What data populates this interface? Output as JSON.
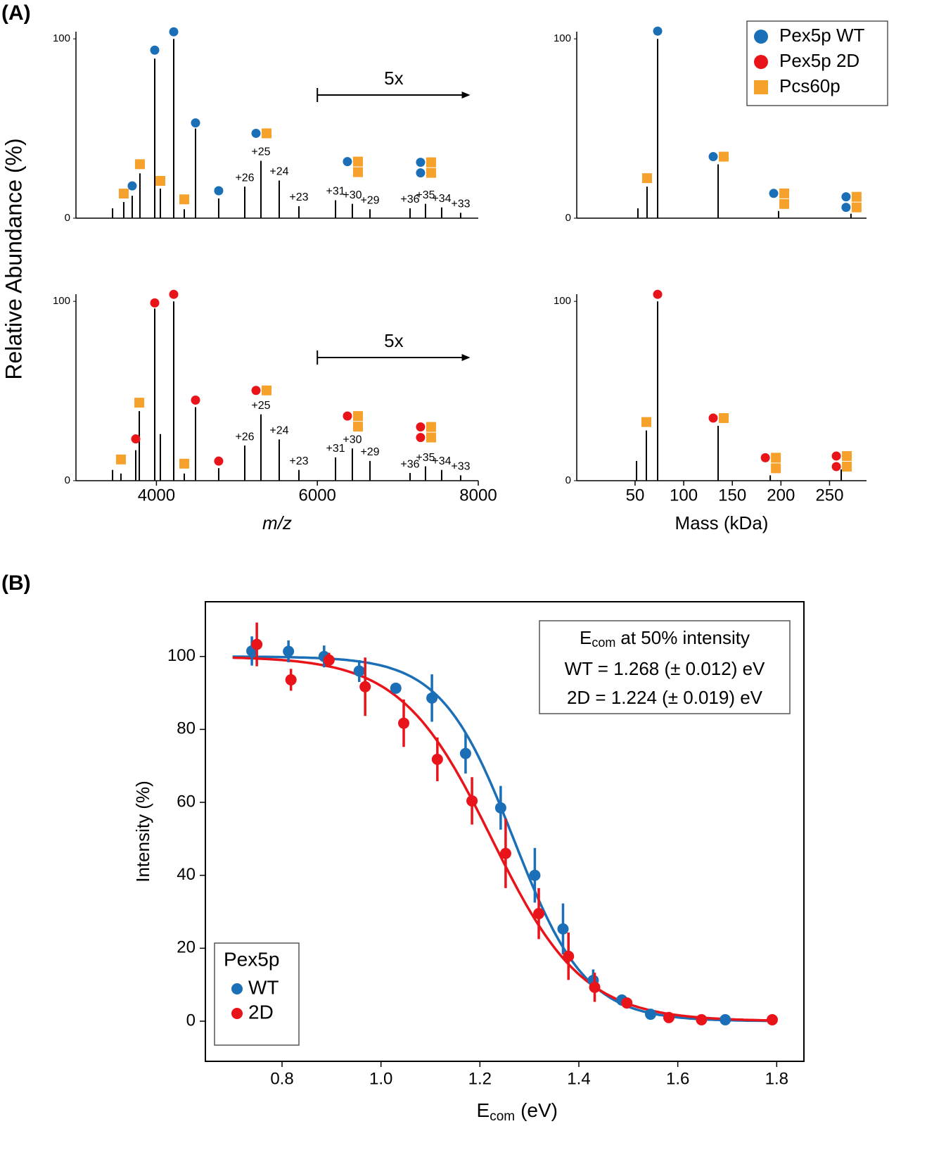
{
  "figure": {
    "panel_a": "(A)",
    "panel_b": "(B)",
    "ylabel_a": "Relative Abundance (%)"
  },
  "chart_data": [
    {
      "type": "spectrum",
      "color": "#000000",
      "x": [
        3455,
        3594,
        3699,
        3795,
        3979,
        4049,
        4215,
        4346,
        4486,
        4774,
        5098,
        5299,
        5526,
        5771,
        6226,
        6435,
        6654,
        7152,
        7344,
        7545,
        7781
      ],
      "values": [
        5.5,
        9,
        12.5,
        25,
        89,
        16.5,
        100,
        5,
        50,
        11,
        17.6,
        32,
        21,
        6.7,
        10,
        8,
        5,
        5.5,
        8,
        6,
        3
      ],
      "peak_labels": [
        null,
        null,
        null,
        null,
        null,
        null,
        null,
        null,
        null,
        null,
        "+26",
        "+25",
        "+24",
        "+23",
        "+31",
        "+30",
        "+29",
        "+36",
        "+35",
        "+34",
        "+33"
      ],
      "xlim": [
        3000,
        8000
      ],
      "ylim": [
        0,
        104
      ],
      "yticks": [
        0,
        100
      ],
      "scale_annotation": {
        "text": "5x",
        "from": 6000,
        "to": 7900
      }
    },
    {
      "type": "spectrum",
      "color": "#000000",
      "x": [
        52.9,
        62.3,
        73.2,
        135.4,
        197.6,
        272
      ],
      "values": [
        5.5,
        17.6,
        100,
        30,
        4,
        2.5
      ],
      "xlim": [
        -10,
        288
      ],
      "ylim": [
        0,
        104
      ],
      "yticks": [
        0,
        100
      ],
      "legend": [
        {
          "name": "Pex5p WT",
          "color": "#1b6fb6",
          "marker": "circle"
        },
        {
          "name": "Pex5p 2D",
          "color": "#e8141a",
          "marker": "circle"
        },
        {
          "name": "Pcs60p",
          "color": "#f5a12c",
          "marker": "square"
        }
      ]
    },
    {
      "type": "spectrum",
      "color": "#000000",
      "x": [
        3455,
        3559,
        3743,
        3787,
        3979,
        4049,
        4215,
        4346,
        4486,
        4774,
        5098,
        5299,
        5526,
        5771,
        6226,
        6435,
        6654,
        7152,
        7344,
        7545,
        7781
      ],
      "values": [
        6,
        4,
        17,
        38.8,
        96,
        26,
        100,
        4,
        41,
        7,
        19.6,
        37,
        23,
        6,
        13,
        18,
        11,
        4.3,
        8,
        6,
        3
      ],
      "peak_labels": [
        null,
        null,
        null,
        null,
        null,
        null,
        null,
        null,
        null,
        null,
        "+26",
        "+25",
        "+24",
        "+23",
        "+31",
        "+30",
        "+29",
        "+36",
        "+35",
        "+34",
        "+33"
      ],
      "xlim": [
        3000,
        8000
      ],
      "ylim": [
        0,
        104
      ],
      "yticks": [
        0,
        100
      ],
      "xticks": [
        4000,
        6000,
        8000
      ],
      "xlabel": "m/z",
      "xlabel_italic": true,
      "scale_annotation": {
        "text": "5x",
        "from": 6000,
        "to": 7900
      }
    },
    {
      "type": "spectrum",
      "color": "#000000",
      "x": [
        51.5,
        61.6,
        73.2,
        135.4,
        189,
        262
      ],
      "values": [
        11,
        28,
        100,
        30.6,
        3,
        6.3
      ],
      "xlim": [
        -10,
        288
      ],
      "ylim": [
        0,
        104
      ],
      "yticks": [
        0,
        100
      ],
      "xticks": [
        50,
        100,
        150,
        200,
        250
      ],
      "xlabel": "Mass (kDa)"
    },
    {
      "type": "scatter-fit",
      "xlim": [
        0.645,
        1.855
      ],
      "ylim": [
        -11,
        115
      ],
      "xticks": [
        0.8,
        {
          "value": 1,
          "label": "1.0"
        },
        1.2,
        1.4,
        1.6,
        1.8
      ],
      "yticks": [
        0,
        20,
        40,
        60,
        80,
        100
      ],
      "xlabel": {
        "main": "E",
        "sub": "com",
        "rest": "(eV)"
      },
      "ylabel": "Intensity (%)",
      "legend_title": "Pex5p",
      "legend_corner": "lower left",
      "series": [
        {
          "name": "WT",
          "color": "#1b6fb6",
          "x": [
            0.739,
            0.813,
            0.885,
            0.956,
            1.03,
            1.103,
            1.171,
            1.242,
            1.311,
            1.368,
            1.429,
            1.487,
            1.545,
            1.696
          ],
          "values": [
            101.5,
            101.4,
            100,
            96,
            91.3,
            88.6,
            73.4,
            58.5,
            40,
            25.3,
            11.2,
            5.8,
            1.9,
            0.4
          ],
          "errors": [
            4,
            3,
            3,
            3,
            1,
            6.5,
            5.5,
            6,
            7.5,
            7,
            3,
            1,
            0.5,
            0.3
          ],
          "fit": {
            "x0": 1.268,
            "k": 0.073,
            "x_range": [
              0.7,
              1.8
            ]
          }
        },
        {
          "name": "2D",
          "color": "#e8141a",
          "x": [
            0.749,
            0.818,
            0.895,
            0.968,
            1.046,
            1.114,
            1.184,
            1.252,
            1.319,
            1.379,
            1.432,
            1.497,
            1.582,
            1.648,
            1.791
          ],
          "values": [
            103.3,
            93.6,
            99,
            91.7,
            81.7,
            71.8,
            60.4,
            46,
            29.5,
            17.8,
            9.3,
            5,
            1,
            0.4,
            0.4
          ],
          "errors": [
            6,
            3,
            2,
            8,
            6.5,
            6,
            6.5,
            9.5,
            7,
            6.5,
            4,
            1,
            0.5,
            0.3,
            0.3
          ],
          "fit": {
            "x0": 1.224,
            "k": 0.092,
            "x_range": [
              0.7,
              1.8
            ]
          }
        }
      ],
      "annotation": {
        "title_main": "E",
        "title_sub": "com",
        "title_rest": "at 50% intensity",
        "lines": [
          "WT = 1.268 (± 0.012) eV",
          "2D = 1.224 (± 0.019) eV"
        ]
      }
    }
  ]
}
